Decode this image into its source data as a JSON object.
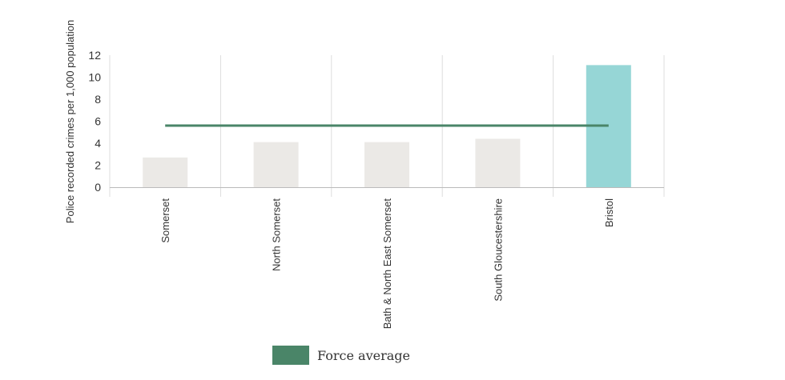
{
  "chart_data": {
    "type": "bar",
    "ylabel": "Police recorded crimes per 1,000 population",
    "categories": [
      "Somerset",
      "North Somerset",
      "Bath & North East Somerset",
      "South Gloucestershire",
      "Bristol"
    ],
    "values": [
      2.7,
      4.1,
      4.1,
      4.4,
      11.1
    ],
    "highlight_index": 4,
    "ylim": [
      0,
      12
    ],
    "yticks": [
      0,
      2,
      4,
      6,
      8,
      10,
      12
    ],
    "reference_line": {
      "name": "Force average",
      "value": 5.6
    },
    "grid": "vertical",
    "legend_placement": "bottom"
  },
  "colors": {
    "bar": "#ebe9e6",
    "highlight": "#96d6d6",
    "reference_line": "#4a8568",
    "grid": "#dddddd",
    "axis": "#bbbbbb"
  }
}
